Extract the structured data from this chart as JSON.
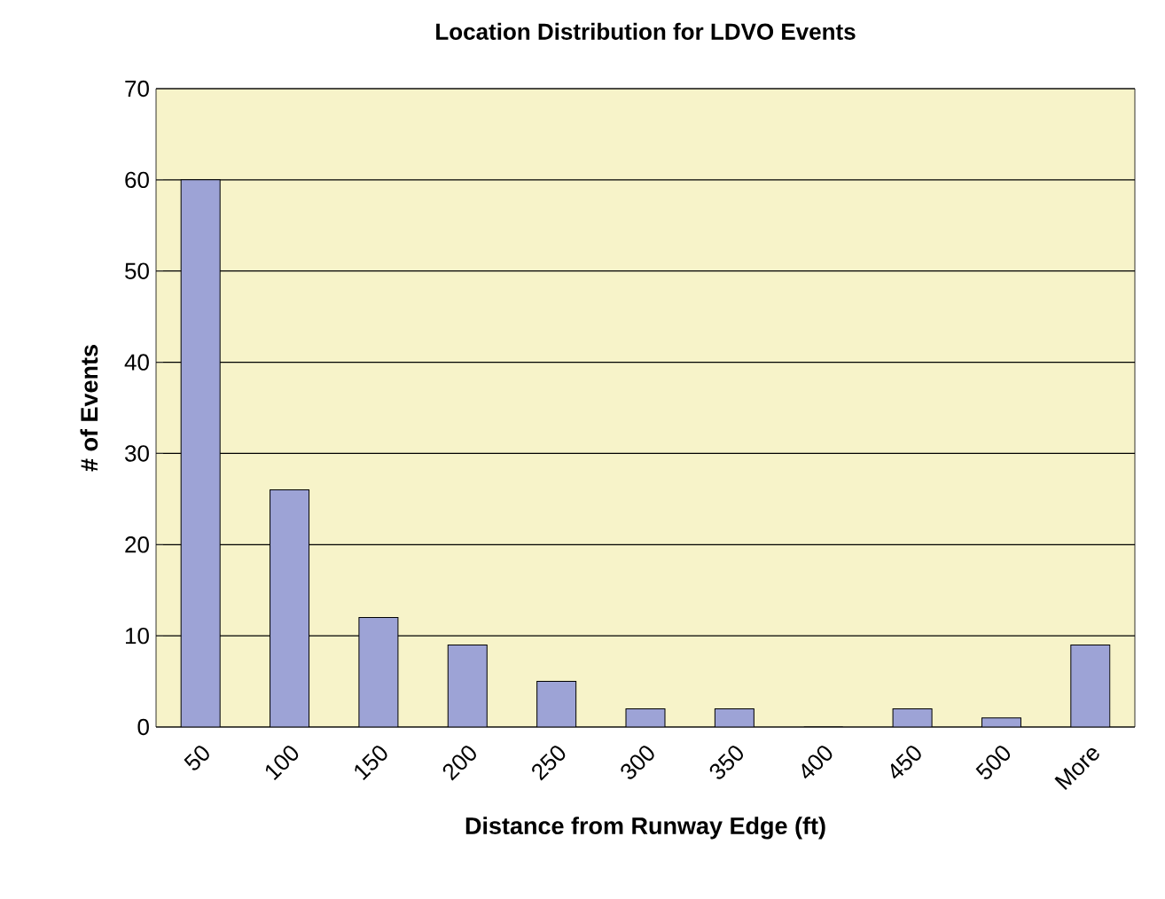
{
  "chart_data": {
    "type": "bar",
    "title": "Location Distribution for LDVO Events",
    "xlabel": "Distance from Runway Edge (ft)",
    "ylabel": "# of Events",
    "categories": [
      "50",
      "100",
      "150",
      "200",
      "250",
      "300",
      "350",
      "400",
      "450",
      "500",
      "More"
    ],
    "values": [
      60,
      26,
      12,
      9,
      5,
      2,
      2,
      0,
      2,
      1,
      9
    ],
    "color": "#9da3d6",
    "ylim": [
      0,
      70
    ],
    "yticks": [
      0,
      10,
      20,
      30,
      40,
      50,
      60,
      70
    ],
    "grid": "y"
  }
}
